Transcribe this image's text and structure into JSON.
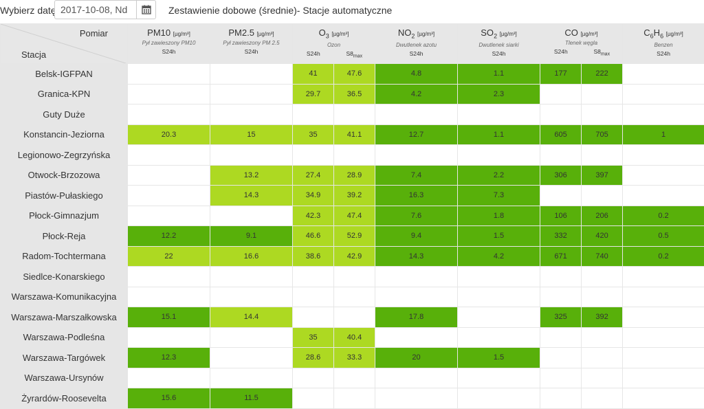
{
  "header": {
    "date_label": "Wybierz datę:",
    "date_value": "2017-10-08, Nd",
    "title": "Zestawienie dobowe (średnie)- Stacje automatyczne"
  },
  "icons": {
    "calendar": "calendar-icon"
  },
  "colors": {
    "light_green": "#add922",
    "dark_green": "#58b00a",
    "header_gray": "#e7e7e7"
  },
  "table": {
    "corner_top": "Pomiar",
    "corner_bottom": "Stacja",
    "pollutants": [
      {
        "name": "PM10",
        "sub": "",
        "unit": "[µg/m³]",
        "desc": "Pył zawieszony PM10",
        "aggs": [
          "S24h"
        ]
      },
      {
        "name": "PM2.5",
        "sub": "",
        "unit": "[µg/m³]",
        "desc": "Pył zawieszony PM 2.5",
        "aggs": [
          "S24h"
        ]
      },
      {
        "name": "O",
        "sub": "3",
        "unit": "[µg/m³]",
        "desc": "Ozon",
        "aggs": [
          "S24h",
          "S8max"
        ]
      },
      {
        "name": "NO",
        "sub": "2",
        "unit": "[µg/m³]",
        "desc": "Dwutlenek azotu",
        "aggs": [
          "S24h"
        ]
      },
      {
        "name": "SO",
        "sub": "2",
        "unit": "[µg/m³]",
        "desc": "Dwutlenek siarki",
        "aggs": [
          "S24h"
        ]
      },
      {
        "name": "CO",
        "sub": "",
        "unit": "[µg/m³]",
        "desc": "Tlenek węgla",
        "aggs": [
          "S24h",
          "S8max"
        ]
      },
      {
        "name": "C6H6",
        "sub": "",
        "unit": "[µg/m³]",
        "desc": "Benzen",
        "aggs": [
          "S24h"
        ]
      }
    ],
    "rows": [
      {
        "station": "Belsk-IGFPAN",
        "values": [
          "",
          "",
          "41",
          "47.6",
          "4.8",
          "1.1",
          "177",
          "222",
          ""
        ],
        "levels": [
          "",
          "",
          "l",
          "l",
          "d",
          "d",
          "d",
          "d",
          ""
        ]
      },
      {
        "station": "Granica-KPN",
        "values": [
          "",
          "",
          "29.7",
          "36.5",
          "4.2",
          "2.3",
          "",
          "",
          ""
        ],
        "levels": [
          "",
          "",
          "l",
          "l",
          "d",
          "d",
          "",
          "",
          ""
        ]
      },
      {
        "station": "Guty Duże",
        "values": [
          "",
          "",
          "",
          "",
          "",
          "",
          "",
          "",
          ""
        ],
        "levels": [
          "",
          "",
          "",
          "",
          "",
          "",
          "",
          "",
          ""
        ]
      },
      {
        "station": "Konstancin-Jeziorna",
        "values": [
          "20.3",
          "15",
          "35",
          "41.1",
          "12.7",
          "1.1",
          "605",
          "705",
          "1"
        ],
        "levels": [
          "l",
          "l",
          "l",
          "l",
          "d",
          "d",
          "d",
          "d",
          "d"
        ]
      },
      {
        "station": "Legionowo-Zegrzyńska",
        "values": [
          "",
          "",
          "",
          "",
          "",
          "",
          "",
          "",
          ""
        ],
        "levels": [
          "",
          "",
          "",
          "",
          "",
          "",
          "",
          "",
          ""
        ]
      },
      {
        "station": "Otwock-Brzozowa",
        "values": [
          "",
          "13.2",
          "27.4",
          "28.9",
          "7.4",
          "2.2",
          "306",
          "397",
          ""
        ],
        "levels": [
          "",
          "l",
          "l",
          "l",
          "d",
          "d",
          "d",
          "d",
          ""
        ]
      },
      {
        "station": "Piastów-Pułaskiego",
        "values": [
          "",
          "14.3",
          "34.9",
          "39.2",
          "16.3",
          "7.3",
          "",
          "",
          ""
        ],
        "levels": [
          "",
          "l",
          "l",
          "l",
          "d",
          "d",
          "",
          "",
          ""
        ]
      },
      {
        "station": "Płock-Gimnazjum",
        "values": [
          "",
          "",
          "42.3",
          "47.4",
          "7.6",
          "1.8",
          "106",
          "206",
          "0.2"
        ],
        "levels": [
          "",
          "",
          "l",
          "l",
          "d",
          "d",
          "d",
          "d",
          "d"
        ]
      },
      {
        "station": "Płock-Reja",
        "values": [
          "12.2",
          "9.1",
          "46.6",
          "52.9",
          "9.4",
          "1.5",
          "332",
          "420",
          "0.5"
        ],
        "levels": [
          "d",
          "d",
          "l",
          "l",
          "d",
          "d",
          "d",
          "d",
          "d"
        ]
      },
      {
        "station": "Radom-Tochtermana",
        "values": [
          "22",
          "16.6",
          "38.6",
          "42.9",
          "14.3",
          "4.2",
          "671",
          "740",
          "0.2"
        ],
        "levels": [
          "l",
          "l",
          "l",
          "l",
          "d",
          "d",
          "d",
          "d",
          "d"
        ]
      },
      {
        "station": "Siedlce-Konarskiego",
        "values": [
          "",
          "",
          "",
          "",
          "",
          "",
          "",
          "",
          ""
        ],
        "levels": [
          "",
          "",
          "",
          "",
          "",
          "",
          "",
          "",
          ""
        ]
      },
      {
        "station": "Warszawa-Komunikacyjna",
        "values": [
          "",
          "",
          "",
          "",
          "",
          "",
          "",
          "",
          ""
        ],
        "levels": [
          "",
          "",
          "",
          "",
          "",
          "",
          "",
          "",
          ""
        ]
      },
      {
        "station": "Warszawa-Marszałkowska",
        "values": [
          "15.1",
          "14.4",
          "",
          "",
          "17.8",
          "",
          "325",
          "392",
          ""
        ],
        "levels": [
          "d",
          "l",
          "",
          "",
          "d",
          "",
          "d",
          "d",
          ""
        ]
      },
      {
        "station": "Warszawa-Podleśna",
        "values": [
          "",
          "",
          "35",
          "40.4",
          "",
          "",
          "",
          "",
          ""
        ],
        "levels": [
          "",
          "",
          "l",
          "l",
          "",
          "",
          "",
          "",
          ""
        ]
      },
      {
        "station": "Warszawa-Targówek",
        "values": [
          "12.3",
          "",
          "28.6",
          "33.3",
          "20",
          "1.5",
          "",
          "",
          ""
        ],
        "levels": [
          "d",
          "",
          "l",
          "l",
          "d",
          "d",
          "",
          "",
          ""
        ]
      },
      {
        "station": "Warszawa-Ursynów",
        "values": [
          "",
          "",
          "",
          "",
          "",
          "",
          "",
          "",
          ""
        ],
        "levels": [
          "",
          "",
          "",
          "",
          "",
          "",
          "",
          "",
          ""
        ]
      },
      {
        "station": "Żyrardów-Roosevelta",
        "values": [
          "15.6",
          "11.5",
          "",
          "",
          "",
          "",
          "",
          "",
          ""
        ],
        "levels": [
          "d",
          "d",
          "",
          "",
          "",
          "",
          "",
          "",
          ""
        ]
      }
    ]
  }
}
